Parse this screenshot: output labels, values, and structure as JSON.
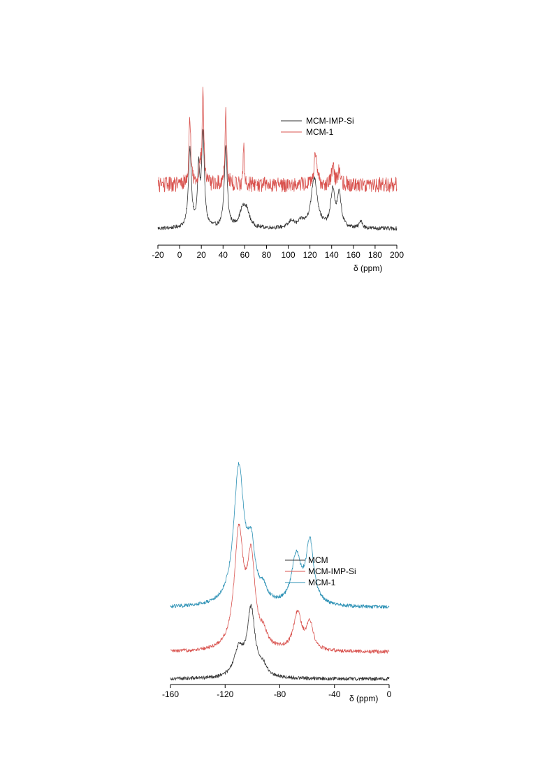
{
  "colors": {
    "black": "#333333",
    "red": "#d9534f",
    "blue": "#2c91b5"
  },
  "chart_data": [
    {
      "type": "line",
      "title": "",
      "xlabel": "δ (ppm)",
      "ylabel": "",
      "xlim": [
        -20,
        200
      ],
      "xticks": [
        "-20",
        "0",
        "20",
        "40",
        "60",
        "80",
        "100",
        "120",
        "140",
        "160",
        "180",
        "200"
      ],
      "grid": false,
      "legend": "top-right",
      "series": [
        {
          "name": "MCM-IMP-Si",
          "color": "#333333",
          "baseline": 0.1,
          "noise": 0.05,
          "peaks": [
            {
              "x": 9.5,
              "h": 2.05,
              "w": 1.6
            },
            {
              "x": 17.5,
              "h": 1.45,
              "w": 1.2
            },
            {
              "x": 21.5,
              "h": 2.45,
              "w": 1.5
            },
            {
              "x": 42.5,
              "h": 2.1,
              "w": 1.6
            },
            {
              "x": 58,
              "h": 0.45,
              "w": 3.5
            },
            {
              "x": 62,
              "h": 0.35,
              "w": 3.0
            },
            {
              "x": 103,
              "h": 0.18,
              "w": 3.0
            },
            {
              "x": 112,
              "h": 0.15,
              "w": 3.0
            },
            {
              "x": 124,
              "h": 1.3,
              "w": 3.5
            },
            {
              "x": 141,
              "h": 0.95,
              "w": 2.2
            },
            {
              "x": 147,
              "h": 0.85,
              "w": 2.2
            },
            {
              "x": 167,
              "h": 0.2,
              "w": 1.5
            }
          ]
        },
        {
          "name": "MCM-1",
          "color": "#d9534f",
          "baseline": 1.25,
          "noise": 0.2,
          "peaks": [
            {
              "x": 9.5,
              "h": 1.75,
              "w": 1.0
            },
            {
              "x": 18.5,
              "h": 0.55,
              "w": 0.8
            },
            {
              "x": 21.5,
              "h": 2.45,
              "w": 0.9
            },
            {
              "x": 42.5,
              "h": 1.9,
              "w": 0.9
            },
            {
              "x": 59,
              "h": 1.0,
              "w": 0.6
            },
            {
              "x": 125,
              "h": 0.75,
              "w": 1.5
            },
            {
              "x": 141,
              "h": 0.45,
              "w": 1.5
            },
            {
              "x": 147,
              "h": 0.35,
              "w": 1.5
            }
          ]
        }
      ]
    },
    {
      "type": "line",
      "title": "",
      "xlabel": "δ (ppm)",
      "ylabel": "",
      "xlim": [
        -160,
        0
      ],
      "xticks": [
        "-160",
        "-120",
        "-80",
        "-40",
        "0"
      ],
      "grid": false,
      "legend": "top-right",
      "series": [
        {
          "name": "MCM",
          "color": "#333333",
          "baseline": 0.0,
          "noise": 0.03,
          "peaks": [
            {
              "x": -110,
              "h": 0.45,
              "w": 4.0
            },
            {
              "x": -101,
              "h": 1.15,
              "w": 3.5
            },
            {
              "x": -92,
              "h": 0.15,
              "w": 3.0
            }
          ]
        },
        {
          "name": "MCM-IMP-Si",
          "color": "#d9534f",
          "baseline": 0.45,
          "noise": 0.03,
          "peaks": [
            {
              "x": -110,
              "h": 1.95,
              "w": 4.0
            },
            {
              "x": -101,
              "h": 1.45,
              "w": 3.5
            },
            {
              "x": -92,
              "h": 0.2,
              "w": 3.0
            },
            {
              "x": -67,
              "h": 0.62,
              "w": 3.5
            },
            {
              "x": -58,
              "h": 0.45,
              "w": 3.0
            }
          ]
        },
        {
          "name": "MCM-1",
          "color": "#2c91b5",
          "baseline": 1.2,
          "noise": 0.03,
          "peaks": [
            {
              "x": -110,
              "h": 2.3,
              "w": 4.5
            },
            {
              "x": -101,
              "h": 0.85,
              "w": 3.5
            },
            {
              "x": -92,
              "h": 0.2,
              "w": 3.0
            },
            {
              "x": -68,
              "h": 0.8,
              "w": 4.0
            },
            {
              "x": -58,
              "h": 1.05,
              "w": 3.5
            }
          ]
        }
      ]
    }
  ]
}
